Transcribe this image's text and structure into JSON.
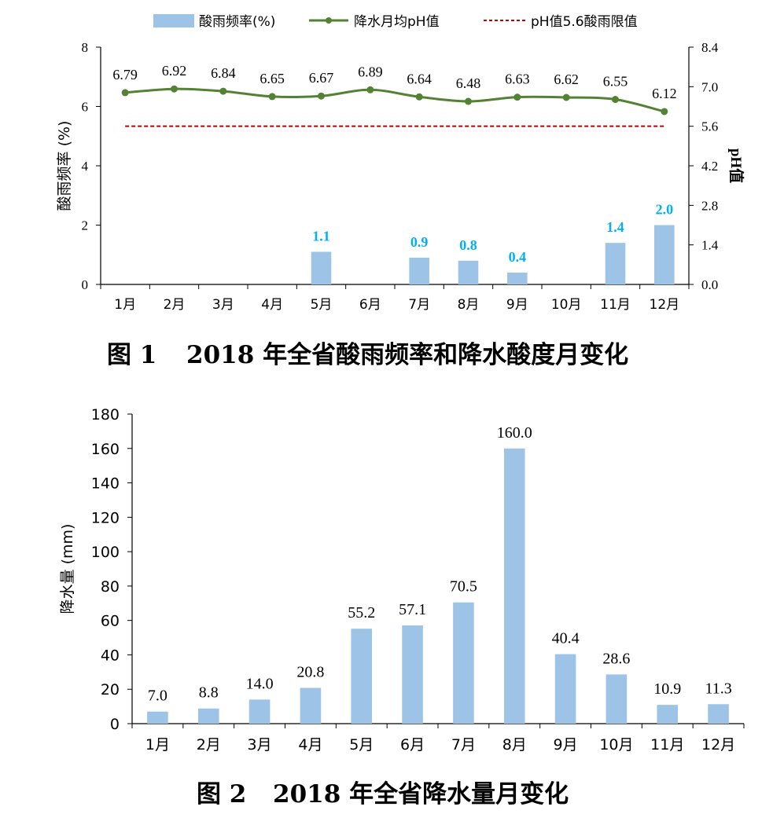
{
  "colors": {
    "bar": "#9dc3e6",
    "line": "#548235",
    "limit": "#c00000",
    "rate_label": "#00b0f0"
  },
  "chart_data": [
    {
      "type": "bar",
      "title": "图 1　2018 年全省酸雨频率和降水酸度月变化",
      "caption_num": "图 1",
      "caption_text": "2018 年全省酸雨频率和降水酸度月变化",
      "categories": [
        "1月",
        "2月",
        "3月",
        "4月",
        "5月",
        "6月",
        "7月",
        "8月",
        "9月",
        "10月",
        "11月",
        "12月"
      ],
      "ylabel": "酸雨频率 (%)",
      "y2label": "pH值",
      "ylim": [
        0,
        8
      ],
      "yticks": [
        "0",
        "2",
        "4",
        "6",
        "8"
      ],
      "y2lim": [
        0,
        8.4
      ],
      "y2ticks": [
        "0.0",
        "1.4",
        "2.8",
        "4.2",
        "5.6",
        "7.0",
        "8.4"
      ],
      "legend_position": "top",
      "legend": {
        "bar": "酸雨频率(%)",
        "line": "降水月均pH值",
        "limit": "pH值5.6酸雨限值"
      },
      "series": [
        {
          "name": "酸雨频率(%)",
          "kind": "bar",
          "axis": "left",
          "values": [
            0,
            0,
            0,
            0,
            1.1,
            0,
            0.9,
            0.8,
            0.4,
            0,
            1.4,
            2.0
          ],
          "labels": [
            "",
            "",
            "",
            "",
            "1.1",
            "",
            "0.9",
            "0.8",
            "0.4",
            "",
            "1.4",
            "2.0"
          ]
        },
        {
          "name": "降水月均pH值",
          "kind": "line",
          "axis": "right",
          "values": [
            6.79,
            6.92,
            6.84,
            6.65,
            6.67,
            6.89,
            6.64,
            6.48,
            6.63,
            6.62,
            6.55,
            6.12
          ],
          "labels": [
            "6.79",
            "6.92",
            "6.84",
            "6.65",
            "6.67",
            "6.89",
            "6.64",
            "6.48",
            "6.63",
            "6.62",
            "6.55",
            "6.12"
          ]
        },
        {
          "name": "pH值5.6酸雨限值",
          "kind": "reference-line",
          "axis": "right",
          "value": 5.6
        }
      ]
    },
    {
      "type": "bar",
      "title": "图 2　2018 年全省降水量月变化",
      "caption_num": "图 2",
      "caption_text": "2018 年全省降水量月变化",
      "categories": [
        "1月",
        "2月",
        "3月",
        "4月",
        "5月",
        "6月",
        "7月",
        "8月",
        "9月",
        "10月",
        "11月",
        "12月"
      ],
      "ylabel": "降水量 (mm)",
      "ylim": [
        0,
        180
      ],
      "yticks": [
        "0",
        "20",
        "40",
        "60",
        "80",
        "100",
        "120",
        "140",
        "160",
        "180"
      ],
      "series": [
        {
          "name": "",
          "values": [
            7.0,
            8.8,
            14.0,
            20.8,
            55.2,
            57.1,
            70.5,
            160.0,
            40.4,
            28.6,
            10.9,
            11.3
          ],
          "labels": [
            "7.0",
            "8.8",
            "14.0",
            "20.8",
            "55.2",
            "57.1",
            "70.5",
            "160.0",
            "40.4",
            "28.6",
            "10.9",
            "11.3"
          ]
        }
      ]
    }
  ]
}
